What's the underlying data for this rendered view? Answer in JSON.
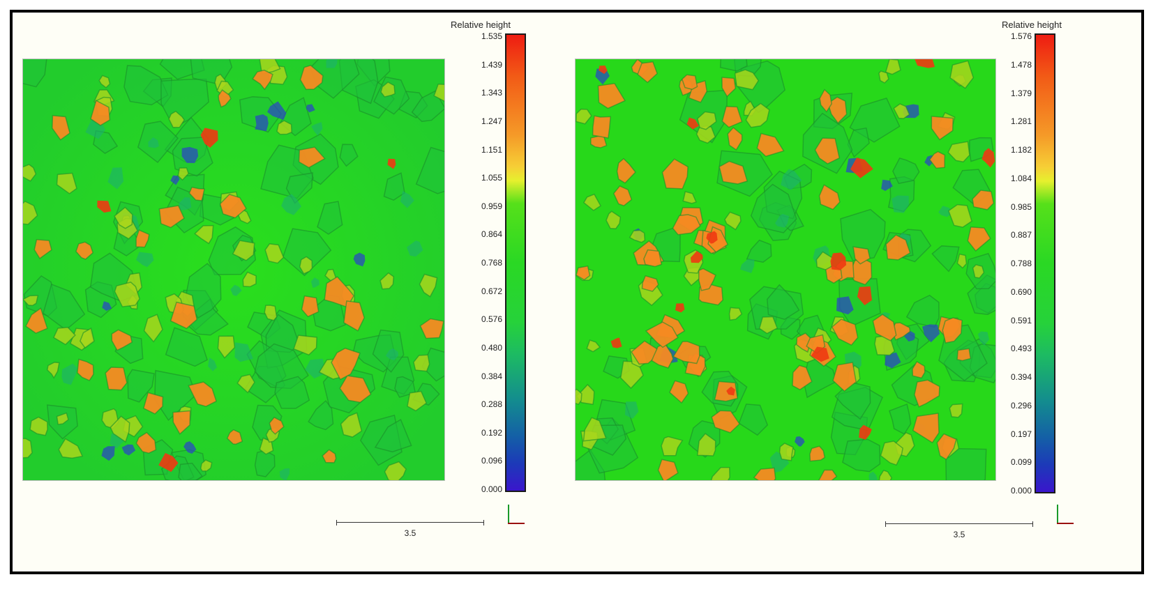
{
  "panels": [
    {
      "colorbar": {
        "title": "Relative height",
        "ticks": [
          "1.535",
          "1.439",
          "1.343",
          "1.247",
          "1.151",
          "1.055",
          "0.959",
          "0.864",
          "0.768",
          "0.672",
          "0.576",
          "0.480",
          "0.384",
          "0.288",
          "0.192",
          "0.096",
          "0.000"
        ]
      },
      "scale_bar": {
        "label": "3.5"
      }
    },
    {
      "colorbar": {
        "title": "Relative height",
        "ticks": [
          "1.576",
          "1.478",
          "1.379",
          "1.281",
          "1.182",
          "1.084",
          "0.985",
          "0.887",
          "0.788",
          "0.690",
          "0.591",
          "0.493",
          "0.394",
          "0.296",
          "0.197",
          "0.099",
          "0.000"
        ]
      },
      "scale_bar": {
        "label": "3.5"
      }
    }
  ],
  "colors": {
    "background": "#27d81a",
    "orange_grain": "#f58a22",
    "red_grain": "#ee3a12",
    "yellow_green_grain": "#a8d61c",
    "blue_pit": "#2a4ac0",
    "teal_pit": "#1db070"
  }
}
